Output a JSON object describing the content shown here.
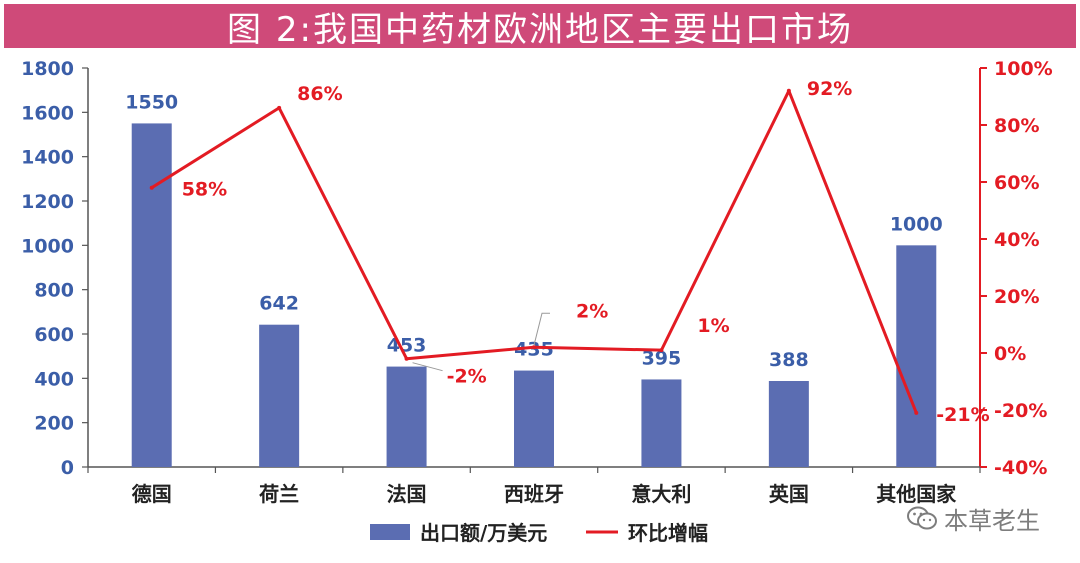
{
  "title": "图 2:我国中药材欧洲地区主要出口市场",
  "watermark": "本草老生",
  "colors": {
    "title_bg": "#cf4a79",
    "bar": "#5b6db2",
    "line": "#e31b23",
    "left_axis_text": "#3b5ea8",
    "right_axis_text": "#e31b23"
  },
  "chart_data": {
    "type": "bar",
    "categories": [
      "德国",
      "荷兰",
      "法国",
      "西班牙",
      "意大利",
      "英国",
      "其他国家"
    ],
    "series": [
      {
        "name": "出口额/万美元",
        "type": "bar",
        "axis": "left",
        "values": [
          1550,
          642,
          453,
          435,
          395,
          388,
          1000
        ]
      },
      {
        "name": "环比增幅",
        "type": "line",
        "axis": "right",
        "values": [
          58,
          86,
          -2,
          2,
          1,
          92,
          -21
        ],
        "labels": [
          "58%",
          "86%",
          "-2%",
          "2%",
          "1%",
          "92%",
          "-21%"
        ]
      }
    ],
    "y_left": {
      "ylim": [
        0,
        1800
      ],
      "ticks": [
        0,
        200,
        400,
        600,
        800,
        1000,
        1200,
        1400,
        1600,
        1800
      ]
    },
    "y_right": {
      "ylim": [
        -40,
        100
      ],
      "ticks": [
        "-40%",
        "-20%",
        "0%",
        "20%",
        "40%",
        "60%",
        "80%",
        "100%"
      ]
    },
    "legend": {
      "position": "bottom"
    },
    "grid": false
  }
}
